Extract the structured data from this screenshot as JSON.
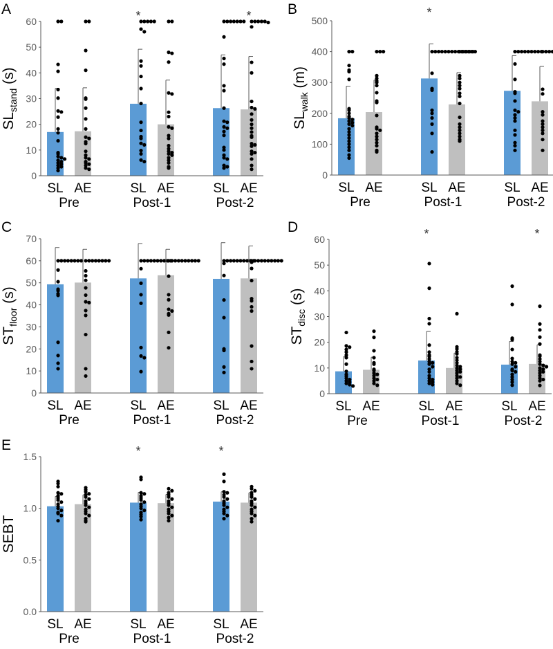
{
  "chart_data": [
    {
      "panel_label": "A",
      "type": "bar",
      "ylabel": {
        "main": "SL",
        "sub": "stand",
        "unit": " (s)"
      },
      "ylim": [
        0,
        60
      ],
      "yticks": [
        "0",
        "10",
        "20",
        "30",
        "40",
        "50",
        "60"
      ],
      "groups": [
        "Pre",
        "Post-1",
        "Post-2"
      ],
      "series": [
        {
          "name": "SL",
          "color": "#5b9bd5",
          "mean": [
            17.0,
            28.0,
            26.3
          ],
          "mean_plus_sd": [
            34.0,
            49.2,
            47.0
          ],
          "points": [
            [
              60,
              60,
              43.3,
              40.6,
              33.5,
              30.2,
              25.2,
              24.8,
              22.8,
              18.2,
              16.7,
              13.6,
              9,
              8.5,
              7.5,
              7,
              6.5,
              6,
              5.5,
              5,
              4.5,
              4,
              3.5,
              3,
              2
            ],
            [
              60,
              60,
              60,
              60,
              60,
              57,
              56,
              44.6,
              42.7,
              38.6,
              33.9,
              28.1,
              20.8,
              17.6,
              15.2,
              14.5,
              12.6,
              12,
              9.8,
              8.5,
              6.1,
              5.5
            ],
            [
              60,
              60,
              60,
              60,
              60,
              60,
              60,
              54,
              45.6,
              43.4,
              35,
              33.1,
              26.3,
              21.2,
              20.8,
              19,
              18.5,
              17.2,
              15.7,
              11,
              10,
              8,
              7,
              6.5,
              4,
              3.5,
              3
            ]
          ]
        },
        {
          "name": "AE",
          "color": "#bfbfbf",
          "mean": [
            17.3,
            20.0,
            25.8
          ],
          "mean_plus_sd": [
            34.2,
            37.2,
            46.4
          ],
          "points": [
            [
              60,
              60,
              48.7,
              41,
              30.2,
              29.8,
              26.3,
              22.1,
              18.2,
              15,
              14.5,
              13.2,
              12.5,
              9.5,
              8,
              7,
              6.5,
              5.5,
              5,
              4.5,
              4,
              3,
              2.5
            ],
            [
              60,
              60,
              48,
              47.6,
              44.2,
              32.2,
              31.8,
              24.7,
              23,
              19,
              18.5,
              15.6,
              14.5,
              11.7,
              10.5,
              9.5,
              9,
              8.5,
              8,
              7,
              6,
              5,
              3.5,
              3
            ],
            [
              60,
              60,
              60,
              60,
              60,
              59.6,
              57.9,
              44.1,
              40,
              28.9,
              26.5,
              26,
              24,
              21.7,
              20,
              18.5,
              17,
              15.5,
              15,
              12.5,
              12,
              11.5,
              9.5,
              9,
              8.5,
              6.5,
              4,
              2.5
            ]
          ]
        }
      ],
      "significant": [
        {
          "group": "Post-1",
          "series": "SL",
          "mark": "*"
        },
        {
          "group": "Post-2",
          "series": "AE",
          "mark": "*"
        }
      ]
    },
    {
      "panel_label": "B",
      "type": "bar",
      "ylabel": {
        "main": "SL",
        "sub": "walk",
        "unit": " (m)"
      },
      "ylim": [
        0,
        500
      ],
      "yticks": [
        "0",
        "100",
        "200",
        "300",
        "400",
        "500"
      ],
      "groups": [
        "Pre",
        "Post-1",
        "Post-2"
      ],
      "series": [
        {
          "name": "SL",
          "color": "#5b9bd5",
          "mean": [
            184,
            313,
            273
          ],
          "mean_plus_sd": [
            288,
            425,
            387
          ],
          "points": [
            [
              400,
              400,
              355,
              340,
              335,
              310,
              215,
              210,
              200,
              190,
              185,
              180,
              175,
              170,
              165,
              160,
              150,
              140,
              130,
              120,
              110,
              100,
              90,
              80,
              65,
              55
            ],
            [
              400,
              400,
              400,
              400,
              400,
              400,
              400,
              400,
              400,
              400,
              400,
              400,
              400,
              400,
              330,
              280,
              275,
              210,
              200,
              185,
              165,
              135,
              75
            ],
            [
              400,
              400,
              400,
              400,
              400,
              400,
              400,
              400,
              400,
              360,
              310,
              270,
              265,
              240,
              210,
              205,
              195,
              185,
              175,
              145,
              130,
              105,
              95,
              80
            ]
          ]
        },
        {
          "name": "AE",
          "color": "#bfbfbf",
          "mean": [
            204,
            229,
            239
          ],
          "mean_plus_sd": [
            308,
            332,
            352
          ],
          "points": [
            [
              400,
              400,
              400,
              322,
              313,
              305,
              300,
              290,
              267,
              240,
              235,
              193,
              155,
              150,
              145,
              135,
              125,
              115,
              105,
              95,
              80,
              75
            ],
            [
              400,
              400,
              400,
              400,
              400,
              322,
              313,
              300,
              290,
              280,
              265,
              255,
              232,
              187,
              165,
              155,
              145,
              135,
              125,
              115,
              110
            ],
            [
              400,
              400,
              400,
              400,
              400,
              400,
              400,
              400,
              278,
              263,
              205,
              195,
              175,
              165,
              155,
              145,
              135,
              115,
              80
            ]
          ]
        }
      ],
      "significant": [
        {
          "group": "Post-1",
          "series": "SL",
          "mark": "*"
        }
      ]
    },
    {
      "panel_label": "C",
      "type": "bar",
      "ylabel": {
        "main": "ST",
        "sub": "floor",
        "unit": " (s)"
      },
      "ylim": [
        0,
        70
      ],
      "yticks": [
        "0",
        "10",
        "20",
        "30",
        "40",
        "50",
        "60",
        "70"
      ],
      "groups": [
        "Pre",
        "Post-1",
        "Post-2"
      ],
      "series": [
        {
          "name": "SL",
          "color": "#5b9bd5",
          "mean": [
            49.3,
            52.0,
            51.8
          ],
          "mean_plus_sd": [
            66.0,
            67.8,
            68.2
          ],
          "points": [
            [
              60,
              60,
              60,
              60,
              60,
              60,
              60,
              60,
              55.8,
              50.5,
              47.1,
              46.4,
              45,
              44.3,
              23,
              17,
              13.5,
              11
            ],
            [
              60,
              60,
              60,
              60,
              60,
              60,
              60,
              60,
              60,
              60,
              56.4,
              49.8,
              44.6,
              40.7,
              20.6,
              16.8,
              16,
              9.7
            ],
            [
              60,
              60,
              60,
              60,
              60,
              60,
              60,
              60,
              60,
              60,
              58.8,
              53.3,
              42.2,
              34.2,
              20,
              19.3,
              11.8,
              9.3
            ]
          ]
        },
        {
          "name": "AE",
          "color": "#bfbfbf",
          "mean": [
            50.1,
            53.4,
            52.0
          ],
          "mean_plus_sd": [
            65.2,
            65.2,
            66.7
          ],
          "points": [
            [
              60,
              60,
              60,
              60,
              60,
              60,
              60,
              60,
              55.4,
              53.2,
              51.1,
              47.7,
              44.4,
              41.4,
              41,
              37.4,
              35.2,
              26.5,
              11,
              7.7
            ],
            [
              60,
              60,
              60,
              60,
              60,
              60,
              60,
              60,
              60,
              60,
              53,
              44.6,
              42.3,
              38,
              37.2,
              36,
              35.4,
              27.5,
              20.5
            ],
            [
              60,
              60,
              60,
              60,
              60,
              60,
              60,
              60,
              60,
              60,
              59.3,
              56.5,
              51,
              42.8,
              41.8,
              39.1,
              37.2,
              21.3,
              14.3,
              11
            ]
          ]
        }
      ],
      "significant": []
    },
    {
      "panel_label": "D",
      "type": "bar",
      "ylabel": {
        "main": "ST",
        "sub": "disc",
        "unit": " (s)"
      },
      "ylim": [
        0,
        60
      ],
      "yticks": [
        "0",
        "10",
        "20",
        "30",
        "40",
        "50",
        "60"
      ],
      "groups": [
        "Pre",
        "Post-1",
        "Post-2"
      ],
      "series": [
        {
          "name": "SL",
          "color": "#5b9bd5",
          "mean": [
            8.7,
            12.9,
            11.3
          ],
          "mean_plus_sd": [
            14.4,
            24.2,
            20.3
          ],
          "points": [
            [
              23.8,
              18.6,
              18.1,
              17.2,
              16.2,
              15,
              14,
              11.5,
              8.7,
              7.5,
              6.8,
              6,
              5.5,
              5,
              4.5,
              4,
              3.5,
              3
            ],
            [
              50.6,
              41,
              29.2,
              27.2,
              18.9,
              16.2,
              15,
              14.5,
              13.5,
              12.5,
              12,
              11.5,
              10.5,
              9.5,
              8.5,
              7,
              6,
              5.5,
              5,
              4.5,
              4,
              3.5
            ],
            [
              41.8,
              34.7,
              21.6,
              21,
              17.2,
              13.7,
              12.5,
              12,
              11.5,
              10.5,
              9.5,
              9,
              8.5,
              7.5,
              6.5,
              5.5,
              4.5,
              3.3
            ]
          ]
        },
        {
          "name": "AE",
          "color": "#bfbfbf",
          "mean": [
            9.3,
            10.0,
            11.6
          ],
          "mean_plus_sd": [
            14.2,
            15.8,
            19.0
          ],
          "points": [
            [
              24.3,
              21.9,
              16.7,
              14,
              12,
              11.5,
              9.5,
              9,
              8,
              7.5,
              7,
              6,
              5.5,
              5,
              4,
              3.3
            ],
            [
              31.1,
              18.2,
              17.4,
              16.3,
              15.5,
              14,
              13,
              12,
              11,
              10.5,
              10,
              9.5,
              9,
              8.5,
              8,
              7,
              6.5,
              6,
              5,
              4,
              3.3
            ],
            [
              34,
              27.1,
              24.8,
              22,
              19.3,
              15,
              14.6,
              13.5,
              12.5,
              11.5,
              11,
              10.5,
              10,
              9.5,
              9,
              8.5,
              8,
              7,
              6,
              5.5,
              5,
              3.2
            ]
          ]
        }
      ],
      "significant": [
        {
          "group": "Post-1",
          "series": "SL",
          "mark": "*"
        },
        {
          "group": "Post-2",
          "series": "AE",
          "mark": "*"
        }
      ]
    },
    {
      "panel_label": "E",
      "type": "bar",
      "ylabel": {
        "main": "SEBT",
        "sub": "",
        "unit": ""
      },
      "ylim": [
        0,
        1.5
      ],
      "yticks": [
        "0.0",
        "0.5",
        "1.0",
        "1.5"
      ],
      "groups": [
        "Pre",
        "Post-1",
        "Post-2"
      ],
      "series": [
        {
          "name": "SL",
          "color": "#5b9bd5",
          "mean": [
            1.02,
            1.055,
            1.065
          ],
          "mean_plus_sd": [
            1.115,
            1.155,
            1.16
          ],
          "points": [
            [
              1.26,
              1.24,
              1.21,
              1.15,
              1.14,
              1.12,
              1.1,
              1.08,
              1.06,
              1.04,
              1.02,
              1.0,
              0.98,
              0.96,
              0.95,
              0.93,
              0.88
            ],
            [
              1.3,
              1.28,
              1.15,
              1.14,
              1.12,
              1.1,
              1.08,
              1.06,
              1.04,
              1.02,
              1.0,
              0.98,
              0.96,
              0.94,
              0.92,
              0.89
            ],
            [
              1.33,
              1.26,
              1.16,
              1.15,
              1.13,
              1.11,
              1.09,
              1.07,
              1.05,
              1.03,
              1.01,
              0.99,
              0.97,
              0.95,
              0.93,
              0.9
            ]
          ]
        },
        {
          "name": "AE",
          "color": "#bfbfbf",
          "mean": [
            1.04,
            1.05,
            1.055
          ],
          "mean_plus_sd": [
            1.13,
            1.135,
            1.15
          ],
          "points": [
            [
              1.2,
              1.18,
              1.16,
              1.14,
              1.13,
              1.11,
              1.09,
              1.07,
              1.05,
              1.03,
              1.01,
              0.99,
              0.97,
              0.95,
              0.93,
              0.9,
              0.88,
              0.87
            ],
            [
              1.19,
              1.17,
              1.15,
              1.13,
              1.11,
              1.09,
              1.07,
              1.05,
              1.03,
              1.01,
              0.99,
              0.97,
              0.95,
              0.93,
              0.91,
              0.88
            ],
            [
              1.21,
              1.19,
              1.17,
              1.15,
              1.13,
              1.11,
              1.09,
              1.07,
              1.05,
              1.03,
              1.01,
              0.99,
              0.97,
              0.95,
              0.93,
              0.9,
              0.87
            ]
          ]
        }
      ],
      "significant": [
        {
          "group": "Post-1",
          "series": "SL",
          "mark": "*"
        },
        {
          "group": "Post-2",
          "series": "SL",
          "mark": "*"
        }
      ]
    }
  ]
}
